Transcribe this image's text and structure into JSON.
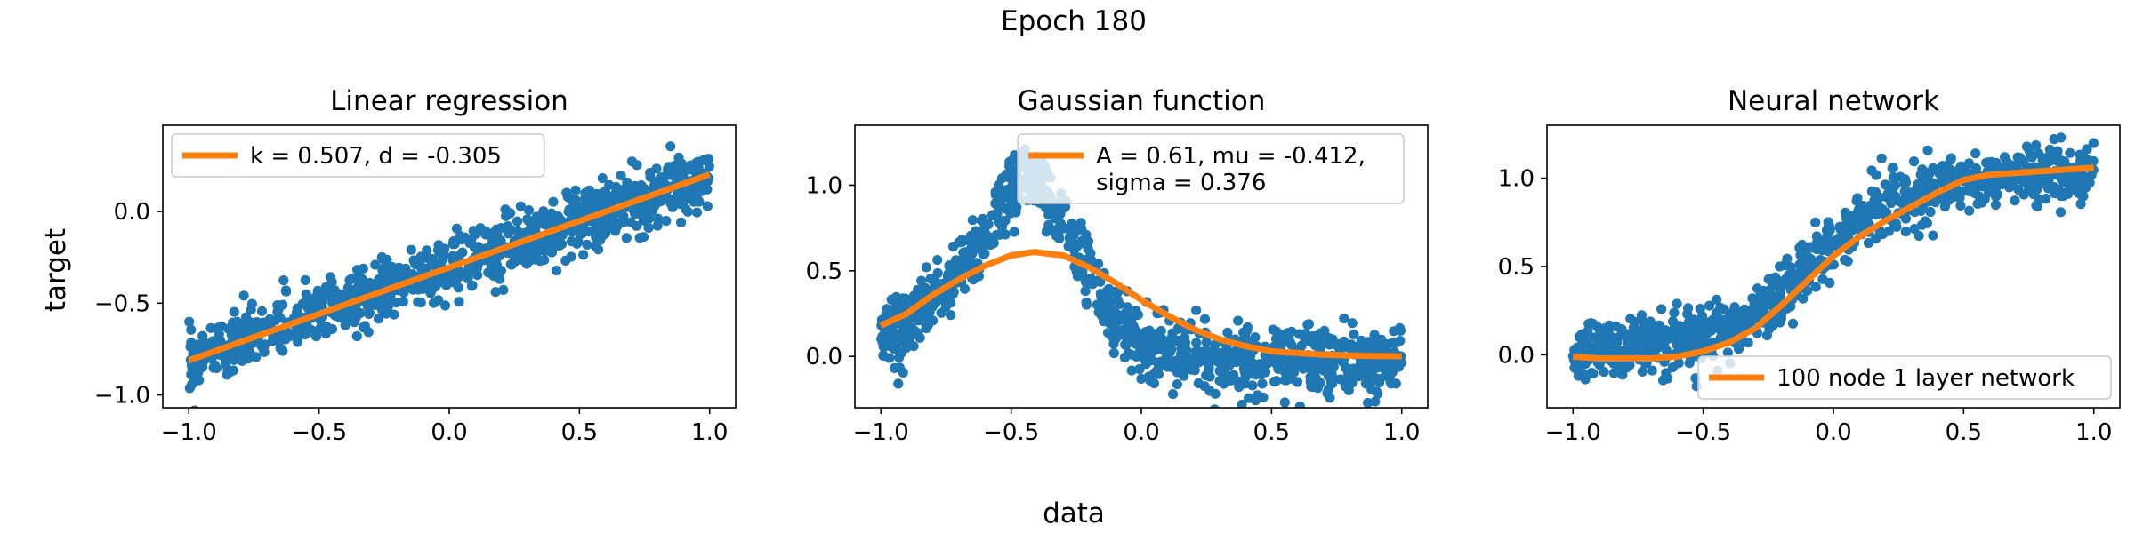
{
  "figure": {
    "suptitle": "Epoch 180",
    "shared_xlabel": "data",
    "shared_ylabel": "target"
  },
  "colors": {
    "scatter": "#1f77b4",
    "fit_line": "#ff7f0e"
  },
  "chart_data": [
    {
      "type": "scatter",
      "title": "Linear regression",
      "xlabel": "data",
      "ylabel": "target",
      "xlim": [
        -1.1,
        1.1
      ],
      "ylim": [
        -1.07,
        0.47
      ],
      "xticks": [
        -1.0,
        -0.5,
        0.0,
        0.5,
        1.0
      ],
      "xtick_labels": [
        "−1.0",
        "−0.5",
        "0.0",
        "0.5",
        "1.0"
      ],
      "yticks": [
        -1.0,
        -0.5,
        0.0
      ],
      "ytick_labels": [
        "−1.0",
        "−0.5",
        "0.0"
      ],
      "legend_position": "upper-left",
      "series": [
        {
          "kind": "scatter",
          "description": "noisy samples around a straight line",
          "x": [
            -1.0,
            -0.9,
            -0.8,
            -0.7,
            -0.6,
            -0.5,
            -0.4,
            -0.3,
            -0.2,
            -0.1,
            0.0,
            0.1,
            0.2,
            0.3,
            0.4,
            0.5,
            0.6,
            0.7,
            0.8,
            0.9,
            1.0
          ],
          "y": [
            -0.82,
            -0.76,
            -0.71,
            -0.66,
            -0.61,
            -0.56,
            -0.51,
            -0.46,
            -0.41,
            -0.36,
            -0.31,
            -0.25,
            -0.2,
            -0.15,
            -0.1,
            -0.05,
            0.0,
            0.05,
            0.1,
            0.15,
            0.2
          ],
          "noise": 0.08
        },
        {
          "kind": "line",
          "name": "k = 0.507, d = -0.305",
          "x": [
            -1.0,
            -0.5,
            0.0,
            0.5,
            1.0
          ],
          "y": [
            -0.812,
            -0.559,
            -0.305,
            -0.052,
            0.202
          ]
        }
      ]
    },
    {
      "type": "scatter",
      "title": "Gaussian function",
      "xlabel": "data",
      "ylabel": "",
      "xlim": [
        -1.1,
        1.1
      ],
      "ylim": [
        -0.3,
        1.35
      ],
      "xticks": [
        -1.0,
        -0.5,
        0.0,
        0.5,
        1.0
      ],
      "xtick_labels": [
        "−1.0",
        "−0.5",
        "0.0",
        "0.5",
        "1.0"
      ],
      "yticks": [
        0.0,
        0.5,
        1.0
      ],
      "ytick_labels": [
        "0.0",
        "0.5",
        "1.0"
      ],
      "legend_position": "upper-center",
      "series": [
        {
          "kind": "scatter",
          "description": "noisy samples of a peaked curve",
          "x": [
            -1.0,
            -0.9,
            -0.8,
            -0.7,
            -0.6,
            -0.5,
            -0.45,
            -0.4,
            -0.35,
            -0.3,
            -0.25,
            -0.2,
            -0.1,
            0.0,
            0.1,
            0.2,
            0.3,
            0.4,
            0.5,
            0.6,
            0.7,
            0.8,
            0.9,
            1.0
          ],
          "y": [
            0.12,
            0.2,
            0.32,
            0.5,
            0.72,
            0.95,
            1.05,
            1.0,
            0.9,
            0.78,
            0.62,
            0.45,
            0.22,
            0.08,
            0.02,
            0.0,
            -0.02,
            -0.02,
            -0.03,
            -0.03,
            -0.03,
            -0.04,
            -0.04,
            -0.05
          ],
          "noise": 0.1
        },
        {
          "kind": "line",
          "name": "A = 0.61, mu = -0.412,\nsigma = 0.376",
          "name_lines": [
            "A = 0.61, mu = -0.412,",
            "sigma = 0.376"
          ],
          "x": [
            -1.0,
            -0.9,
            -0.8,
            -0.7,
            -0.6,
            -0.5,
            -0.412,
            -0.3,
            -0.2,
            -0.1,
            0.0,
            0.1,
            0.2,
            0.3,
            0.4,
            0.5,
            0.6,
            0.7,
            0.8,
            0.9,
            1.0
          ],
          "y": [
            0.18,
            0.25,
            0.36,
            0.45,
            0.53,
            0.59,
            0.61,
            0.59,
            0.52,
            0.43,
            0.33,
            0.24,
            0.16,
            0.1,
            0.06,
            0.03,
            0.02,
            0.01,
            0.005,
            0.002,
            0.001
          ]
        }
      ]
    },
    {
      "type": "scatter",
      "title": "Neural network",
      "xlabel": "data",
      "ylabel": "",
      "xlim": [
        -1.1,
        1.1
      ],
      "ylim": [
        -0.3,
        1.3
      ],
      "xticks": [
        -1.0,
        -0.5,
        0.0,
        0.5,
        1.0
      ],
      "xtick_labels": [
        "−1.0",
        "−0.5",
        "0.0",
        "0.5",
        "1.0"
      ],
      "yticks": [
        0.0,
        0.5,
        1.0
      ],
      "ytick_labels": [
        "0.0",
        "0.5",
        "1.0"
      ],
      "legend_position": "lower-right",
      "series": [
        {
          "kind": "scatter",
          "description": "noisy samples of a sigmoid-like step",
          "x": [
            -1.0,
            -0.9,
            -0.8,
            -0.7,
            -0.6,
            -0.5,
            -0.4,
            -0.3,
            -0.2,
            -0.1,
            0.0,
            0.1,
            0.2,
            0.3,
            0.4,
            0.5,
            0.6,
            0.7,
            0.8,
            0.9,
            1.0
          ],
          "y": [
            0.03,
            0.04,
            0.05,
            0.06,
            0.07,
            0.1,
            0.14,
            0.22,
            0.35,
            0.5,
            0.63,
            0.75,
            0.84,
            0.9,
            0.95,
            0.98,
            1.0,
            1.01,
            1.02,
            1.02,
            1.03
          ],
          "noise": 0.08
        },
        {
          "kind": "line",
          "name": "100 node 1 layer network",
          "x": [
            -1.0,
            -0.9,
            -0.8,
            -0.7,
            -0.6,
            -0.5,
            -0.4,
            -0.3,
            -0.2,
            -0.1,
            0.0,
            0.1,
            0.2,
            0.3,
            0.4,
            0.5,
            0.6,
            0.7,
            0.8,
            0.9,
            1.0
          ],
          "y": [
            -0.01,
            -0.02,
            -0.02,
            -0.02,
            -0.01,
            0.02,
            0.07,
            0.15,
            0.28,
            0.42,
            0.56,
            0.67,
            0.76,
            0.84,
            0.92,
            0.99,
            1.02,
            1.03,
            1.04,
            1.05,
            1.06
          ]
        }
      ]
    }
  ]
}
